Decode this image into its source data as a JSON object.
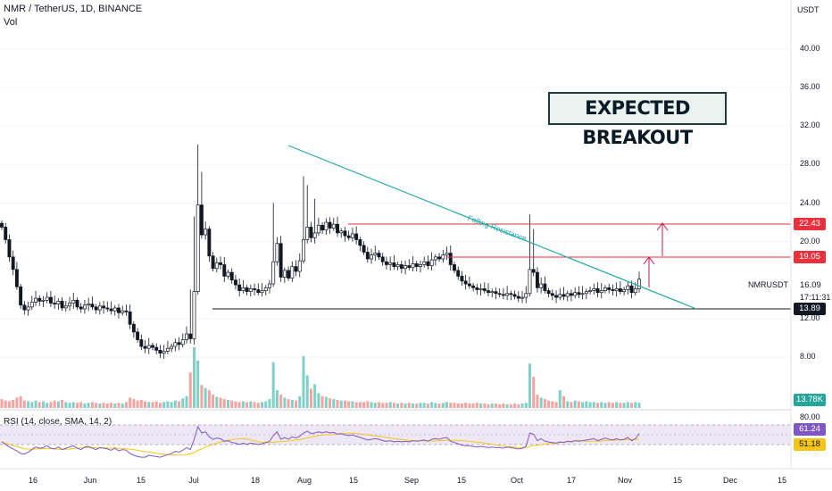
{
  "header": {
    "symbol": "NMR / TetherUS, 1D, BINANCE",
    "volume_label": "Vol",
    "currency": "USDT"
  },
  "annotation": {
    "breakout_text": "EXPECTED BREAKOUT",
    "trendline_label": "Falling Resistance"
  },
  "ticker": {
    "name": "NMRUSDT",
    "price": "16.09",
    "countdown": "17:11:31"
  },
  "levels": {
    "top_resistance": "22.43",
    "mid_resistance": "19.05",
    "support": "13.89",
    "volume_value": "13.78K"
  },
  "rsi": {
    "title": "RSI (14, close, SMA, 14, 2)",
    "value": "61.24",
    "sma": "51.18",
    "upper_band": "80.00",
    "lower_band": ""
  },
  "colors": {
    "up": "#26a69a",
    "down": "#ef5350",
    "candle_up_fill": "#ffffff",
    "candle_body_stroke": "#131722",
    "trendline": "#2aa8a8",
    "resistance": "#e8313d",
    "support": "#131722",
    "rsi_line": "#7e57c2",
    "rsi_sma": "#f5c518",
    "rsi_band": "#ede7f6"
  },
  "chart_data": {
    "type": "candlestick",
    "y_axis_ticks": [
      "40.00",
      "36.00",
      "32.00",
      "28.00",
      "24.00",
      "20.00",
      "12.00",
      "8.00"
    ],
    "x_axis_ticks": [
      "16",
      "Jun",
      "15",
      "Jul",
      "18",
      "Aug",
      "15",
      "Sep",
      "15",
      "Oct",
      "17",
      "Nov",
      "15",
      "Dec",
      "15"
    ],
    "ylim": [
      4,
      44
    ],
    "horizontal_levels": [
      22.43,
      19.05,
      13.89
    ],
    "closes": [
      21.5,
      20.2,
      18.4,
      17.1,
      15.3,
      13.4,
      12.9,
      13.2,
      13.7,
      14.1,
      13.8,
      13.9,
      14.2,
      13.6,
      13.5,
      13.8,
      13.1,
      13.3,
      13.6,
      13.9,
      13.2,
      13.0,
      13.4,
      13.5,
      13.2,
      12.9,
      13.3,
      13.1,
      13.0,
      12.8,
      13.1,
      12.6,
      12.8,
      12.7,
      11.4,
      10.6,
      9.8,
      9.1,
      8.9,
      9.2,
      9.0,
      8.7,
      8.4,
      8.6,
      8.9,
      9.1,
      9.5,
      9.3,
      9.8,
      10.4,
      9.9,
      14.8,
      23.8,
      20.7,
      21.3,
      18.5,
      17.2,
      17.8,
      17.6,
      16.4,
      16.8,
      16.0,
      15.5,
      14.9,
      15.2,
      14.8,
      15.1,
      15.0,
      14.7,
      14.9,
      15.2,
      15.6,
      17.9,
      19.8,
      16.3,
      17.0,
      16.2,
      17.4,
      16.9,
      18.0,
      20.2,
      21.5,
      20.4,
      20.9,
      21.7,
      21.2,
      22.0,
      21.4,
      21.8,
      20.9,
      21.1,
      20.6,
      20.4,
      20.8,
      20.2,
      19.6,
      18.9,
      18.2,
      18.6,
      18.8,
      18.4,
      17.9,
      17.6,
      17.8,
      17.4,
      17.6,
      17.2,
      17.5,
      17.3,
      17.7,
      17.4,
      17.6,
      17.9,
      17.5,
      18.1,
      18.4,
      18.2,
      18.6,
      18.8,
      17.6,
      17.0,
      16.4,
      15.9,
      15.6,
      15.4,
      15.2,
      15.0,
      15.1,
      14.9,
      14.7,
      14.8,
      14.6,
      14.5,
      14.4,
      14.6,
      14.5,
      14.3,
      14.1,
      14.2,
      14.6,
      17.1,
      16.8,
      15.2,
      15.6,
      14.9,
      14.6,
      14.4,
      14.2,
      14.5,
      14.3,
      14.6,
      14.4,
      14.7,
      14.5,
      14.6,
      14.8,
      14.9,
      15.1,
      14.7,
      14.9,
      15.2,
      15.0,
      14.9,
      15.1,
      14.8,
      15.0,
      15.4,
      14.7,
      15.1,
      16.09
    ],
    "volumes": [
      1.2,
      1.0,
      0.9,
      1.1,
      1.4,
      1.6,
      1.0,
      0.9,
      0.8,
      1.0,
      0.8,
      0.9,
      0.7,
      0.8,
      1.0,
      0.9,
      1.1,
      0.8,
      0.7,
      0.8,
      0.7,
      0.8,
      0.6,
      0.7,
      0.8,
      0.7,
      0.6,
      0.7,
      0.6,
      0.7,
      0.6,
      0.7,
      0.6,
      0.8,
      1.4,
      1.2,
      1.0,
      1.1,
      0.9,
      0.8,
      0.8,
      0.9,
      0.7,
      0.8,
      0.9,
      0.8,
      1.0,
      0.9,
      1.3,
      1.6,
      4.8,
      8.2,
      6.4,
      3.1,
      2.7,
      2.4,
      1.8,
      1.5,
      1.4,
      1.2,
      1.1,
      1.0,
      0.9,
      0.8,
      0.9,
      0.8,
      0.9,
      0.8,
      0.7,
      0.8,
      0.9,
      1.2,
      6.2,
      2.4,
      1.8,
      1.4,
      1.2,
      1.1,
      1.0,
      1.6,
      7.0,
      4.4,
      2.6,
      3.2,
      2.0,
      1.6,
      1.5,
      1.3,
      1.2,
      1.1,
      1.0,
      1.0,
      0.9,
      0.9,
      0.8,
      0.8,
      0.8,
      0.9,
      0.8,
      0.7,
      0.8,
      0.7,
      0.7,
      0.8,
      0.7,
      0.6,
      0.7,
      0.6,
      0.7,
      0.6,
      0.6,
      0.7,
      0.7,
      0.6,
      0.8,
      0.7,
      0.6,
      0.7,
      0.8,
      0.7,
      0.7,
      0.6,
      0.6,
      0.7,
      0.6,
      0.6,
      0.7,
      0.6,
      0.6,
      0.5,
      0.6,
      0.6,
      0.5,
      0.6,
      0.5,
      0.5,
      0.6,
      0.5,
      0.6,
      0.7,
      6.0,
      4.2,
      1.8,
      1.4,
      1.2,
      1.0,
      0.9,
      0.8,
      2.4,
      1.6,
      0.9,
      0.8,
      1.0,
      0.9,
      0.8,
      0.9,
      0.8,
      0.8,
      0.7,
      0.8,
      0.7,
      0.8,
      0.7,
      0.8,
      0.7,
      0.7,
      0.8,
      0.7,
      0.8,
      0.7
    ],
    "rsi_values": [
      48,
      44,
      40,
      37,
      34,
      30,
      29,
      32,
      36,
      40,
      38,
      39,
      42,
      38,
      37,
      40,
      36,
      38,
      40,
      42,
      38,
      36,
      40,
      41,
      38,
      36,
      39,
      38,
      37,
      35,
      38,
      34,
      36,
      35,
      30,
      27,
      25,
      24,
      24,
      27,
      26,
      25,
      24,
      26,
      28,
      30,
      33,
      32,
      35,
      39,
      36,
      52,
      72,
      62,
      64,
      56,
      52,
      54,
      53,
      49,
      50,
      47,
      46,
      44,
      46,
      44,
      46,
      45,
      44,
      45,
      47,
      49,
      58,
      64,
      52,
      55,
      52,
      56,
      54,
      57,
      62,
      65,
      61,
      62,
      64,
      62,
      64,
      62,
      63,
      60,
      61,
      59,
      58,
      59,
      57,
      55,
      53,
      51,
      52,
      53,
      52,
      50,
      49,
      50,
      48,
      49,
      48,
      49,
      48,
      50,
      49,
      50,
      51,
      49,
      52,
      53,
      52,
      54,
      55,
      49,
      47,
      45,
      43,
      42,
      42,
      41,
      40,
      41,
      40,
      39,
      40,
      39,
      39,
      38,
      40,
      39,
      38,
      37,
      38,
      41,
      62,
      60,
      50,
      53,
      49,
      48,
      47,
      46,
      48,
      47,
      49,
      48,
      50,
      49,
      50,
      51,
      52,
      53,
      50,
      52,
      54,
      52,
      51,
      53,
      51,
      52,
      55,
      50,
      53,
      61.24
    ],
    "rsi_ylim": [
      20,
      90
    ]
  }
}
